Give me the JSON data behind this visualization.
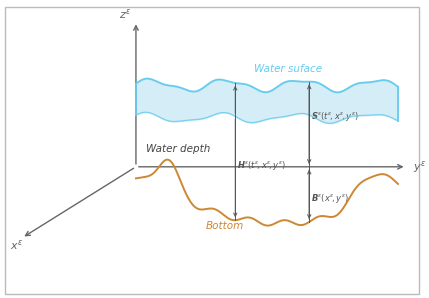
{
  "background_color": "#ffffff",
  "border_color": "#bbbbbb",
  "axis_color": "#666666",
  "water_surface_color": "#66ccee",
  "water_fill_color": "#aaddee",
  "bottom_color": "#cc8833",
  "annotation_color": "#555555",
  "figsize": [
    4.29,
    2.98
  ],
  "dpi": 100,
  "z_label": "$z^\\varepsilon$",
  "y_label": "$y^\\varepsilon$",
  "x_label": "$x^\\varepsilon$",
  "water_surface_label": "Water suface",
  "water_depth_label": "Water depth",
  "bottom_label": "Bottom",
  "S_label": "$\\boldsymbol{S}^\\varepsilon(t^\\varepsilon\\!,x^\\varepsilon\\!,y^\\varepsilon)$",
  "H_label": "$\\boldsymbol{H}^\\varepsilon(t^\\varepsilon\\!,x^\\varepsilon\\!,y^\\varepsilon)$",
  "B_label": "$\\boldsymbol{B}^\\varepsilon(x^\\varepsilon\\!,y^\\varepsilon)$"
}
